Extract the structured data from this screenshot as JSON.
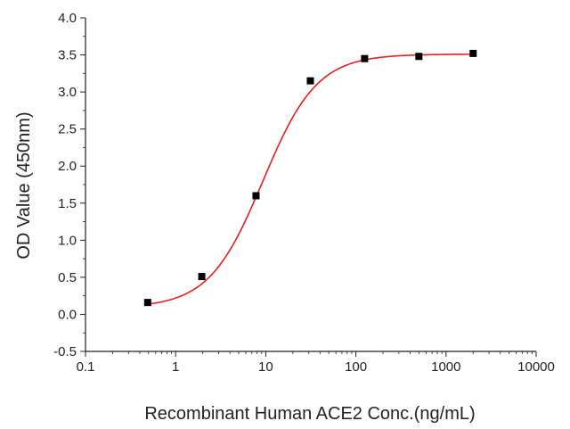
{
  "chart_data": {
    "type": "scatter",
    "title": "",
    "xlabel": "Recombinant Human ACE2 Conc.(ng/mL)",
    "ylabel": "OD Value (450nm)",
    "xscale": "log",
    "xlim": [
      0.1,
      10000
    ],
    "ylim": [
      -0.5,
      4.0
    ],
    "xticks": [
      0.1,
      1,
      10,
      100,
      1000,
      10000
    ],
    "xtick_labels": [
      "0.1",
      "1",
      "10",
      "100",
      "1000",
      "10000"
    ],
    "yticks": [
      -0.5,
      0.0,
      0.5,
      1.0,
      1.5,
      2.0,
      2.5,
      3.0,
      3.5,
      4.0
    ],
    "ytick_labels": [
      "-0.5",
      "0.0",
      "0.5",
      "1.0",
      "1.5",
      "2.0",
      "2.5",
      "3.0",
      "3.5",
      "4.0"
    ],
    "grid": false,
    "legend": "none",
    "series": [
      {
        "marker": "square",
        "color": "#000000",
        "x": [
          0.49,
          1.95,
          7.8,
          31.25,
          125,
          500,
          2000
        ],
        "y": [
          0.16,
          0.51,
          1.6,
          3.15,
          3.45,
          3.48,
          3.52
        ]
      }
    ],
    "fit_curve": {
      "model": "4PL",
      "color": "#e02020",
      "bottom": 0.09,
      "top": 3.51,
      "ec50": 9.3,
      "hill": 1.45,
      "x_range": [
        0.49,
        2000
      ]
    }
  }
}
